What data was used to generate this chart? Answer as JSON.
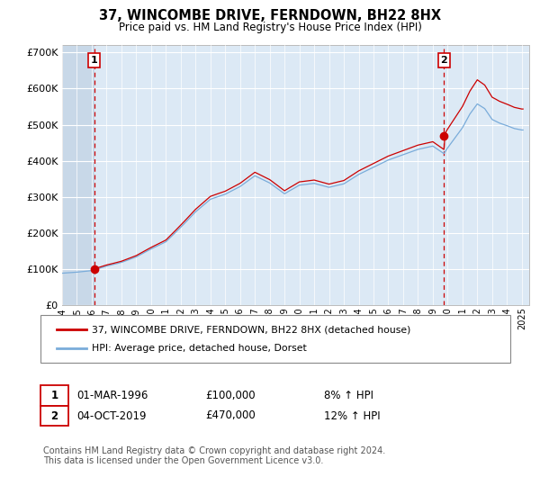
{
  "title": "37, WINCOMBE DRIVE, FERNDOWN, BH22 8HX",
  "subtitle": "Price paid vs. HM Land Registry's House Price Index (HPI)",
  "background_plot": "#dce9f5",
  "background_hatch": "#c8d8e8",
  "sale1_year": 1996.167,
  "sale1_price": 100000,
  "sale2_year": 2019.75,
  "sale2_price": 470000,
  "hpi_color": "#7aacda",
  "price_color": "#cc0000",
  "marker_color": "#cc0000",
  "sale1_label": "01-MAR-1996",
  "sale1_text": "£100,000",
  "sale1_hpi": "8% ↑ HPI",
  "sale2_label": "04-OCT-2019",
  "sale2_text": "£470,000",
  "sale2_hpi": "12% ↑ HPI",
  "legend_label1": "37, WINCOMBE DRIVE, FERNDOWN, BH22 8HX (detached house)",
  "legend_label2": "HPI: Average price, detached house, Dorset",
  "footnote": "Contains HM Land Registry data © Crown copyright and database right 2024.\nThis data is licensed under the Open Government Licence v3.0.",
  "ylim": [
    0,
    720000
  ],
  "xlim_start": 1994.0,
  "xlim_end": 2025.5,
  "yticks": [
    0,
    100000,
    200000,
    300000,
    400000,
    500000,
    600000,
    700000
  ],
  "ytick_labels": [
    "£0",
    "£100K",
    "£200K",
    "£300K",
    "£400K",
    "£500K",
    "£600K",
    "£700K"
  ]
}
